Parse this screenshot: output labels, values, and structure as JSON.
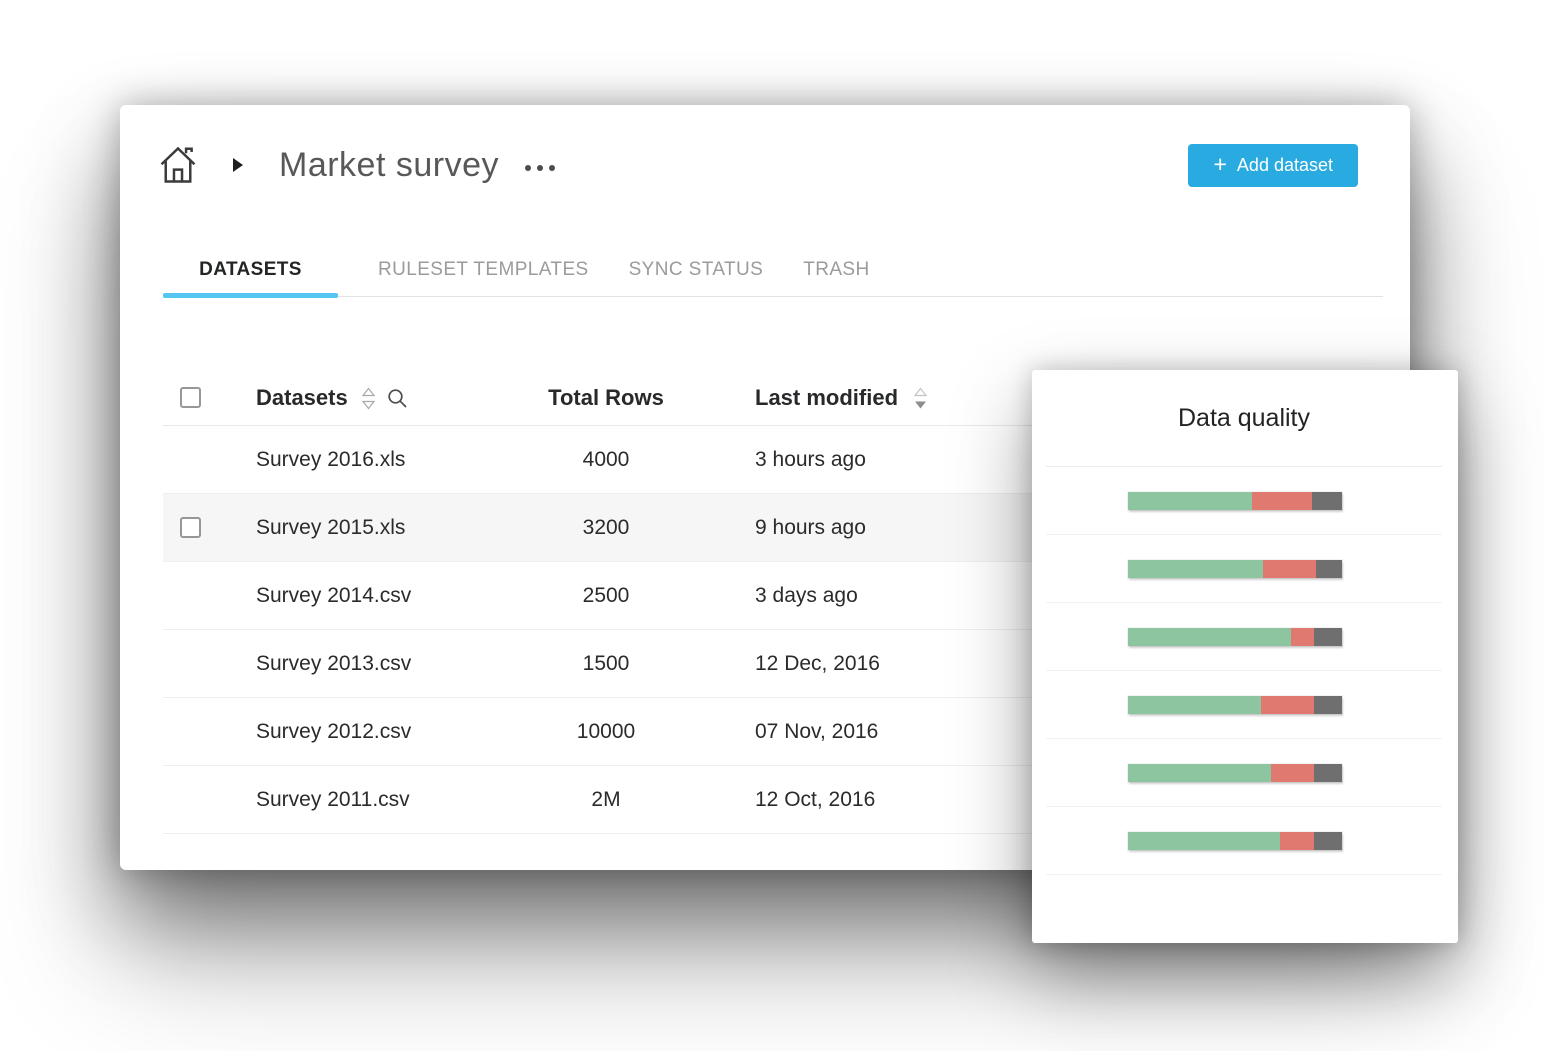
{
  "header": {
    "title": "Market survey",
    "add_button": {
      "plus": "+",
      "label": "Add dataset"
    }
  },
  "tabs": [
    {
      "label": "DATASETS",
      "active": true
    },
    {
      "label": "RULESET TEMPLATES",
      "active": false
    },
    {
      "label": "SYNC STATUS",
      "active": false
    },
    {
      "label": "TRASH",
      "active": false
    }
  ],
  "table": {
    "columns": {
      "datasets": "Datasets",
      "total_rows": "Total Rows",
      "last_modified": "Last modified"
    },
    "sort": {
      "last_modified_direction": "descending"
    },
    "rows": [
      {
        "name": "Survey 2016.xls",
        "total_rows": "4000",
        "last_modified": "3 hours ago",
        "selected": false
      },
      {
        "name": "Survey 2015.xls",
        "total_rows": "3200",
        "last_modified": "9 hours ago",
        "selected": true
      },
      {
        "name": "Survey 2014.csv",
        "total_rows": "2500",
        "last_modified": "3 days ago",
        "selected": false
      },
      {
        "name": "Survey 2013.csv",
        "total_rows": "1500",
        "last_modified": "12 Dec, 2016",
        "selected": false
      },
      {
        "name": "Survey 2012.csv",
        "total_rows": "10000",
        "last_modified": "07 Nov, 2016",
        "selected": false
      },
      {
        "name": "Survey 2011.csv",
        "total_rows": "2M",
        "last_modified": "12 Oct, 2016",
        "selected": false
      }
    ]
  },
  "quality_panel": {
    "title": "Data quality",
    "colors": {
      "valid": "#8cc5a0",
      "invalid": "#e0796f",
      "missing": "#6f6f6f"
    },
    "bars": [
      {
        "valid": 58,
        "invalid": 28,
        "missing": 14
      },
      {
        "valid": 63,
        "invalid": 25,
        "missing": 12
      },
      {
        "valid": 76,
        "invalid": 11,
        "missing": 13
      },
      {
        "valid": 62,
        "invalid": 25,
        "missing": 13
      },
      {
        "valid": 67,
        "invalid": 20,
        "missing": 13
      },
      {
        "valid": 71,
        "invalid": 16,
        "missing": 13
      }
    ]
  },
  "accent_colors": {
    "button_blue": "#29abe2",
    "tab_underline_blue": "#55c6f1",
    "selected_row_bg": "#f6f6f6"
  }
}
